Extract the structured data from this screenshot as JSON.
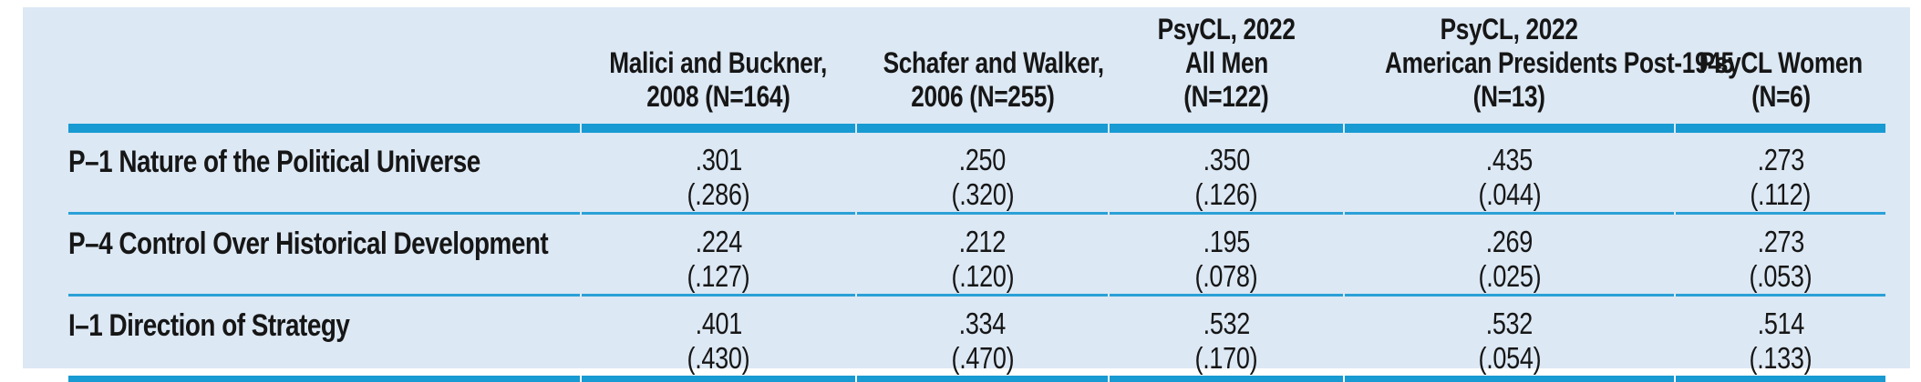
{
  "table": {
    "columns": [
      {
        "lines": [
          "Malici and Buckner,",
          "2008 (N=164)"
        ]
      },
      {
        "lines": [
          "Schafer and Walker,",
          "2006 (N=255)"
        ]
      },
      {
        "lines": [
          "PsyCL, 2022",
          "All Men",
          "(N=122)"
        ]
      },
      {
        "lines": [
          "PsyCL, 2022",
          "American Presidents Post-1945",
          "(N=13)"
        ]
      },
      {
        "lines": [
          "PsyCL Women",
          "(N=6)"
        ]
      }
    ],
    "rows": [
      {
        "label": "P–1 Nature of the Political Universe",
        "values": [
          {
            "mean": ".301",
            "sd": "(.286)"
          },
          {
            "mean": ".250",
            "sd": "(.320)"
          },
          {
            "mean": ".350",
            "sd": "(.126)"
          },
          {
            "mean": ".435",
            "sd": "(.044)"
          },
          {
            "mean": ".273",
            "sd": "(.112)"
          }
        ]
      },
      {
        "label": "P–4 Control Over Historical Development",
        "values": [
          {
            "mean": ".224",
            "sd": "(.127)"
          },
          {
            "mean": ".212",
            "sd": "(.120)"
          },
          {
            "mean": ".195",
            "sd": "(.078)"
          },
          {
            "mean": ".269",
            "sd": "(.025)"
          },
          {
            "mean": ".273",
            "sd": "(.053)"
          }
        ]
      },
      {
        "label": "I–1 Direction of Strategy",
        "values": [
          {
            "mean": ".401",
            "sd": "(.430)"
          },
          {
            "mean": ".334",
            "sd": "(.470)"
          },
          {
            "mean": ".532",
            "sd": "(.170)"
          },
          {
            "mean": ".532",
            "sd": "(.054)"
          },
          {
            "mean": ".514",
            "sd": "(.133)"
          }
        ]
      }
    ],
    "colors": {
      "panel_background": "#dce8f4",
      "header_rule": "#189ad2",
      "row_rule": "#2ba0d6",
      "text": "#161616"
    }
  }
}
